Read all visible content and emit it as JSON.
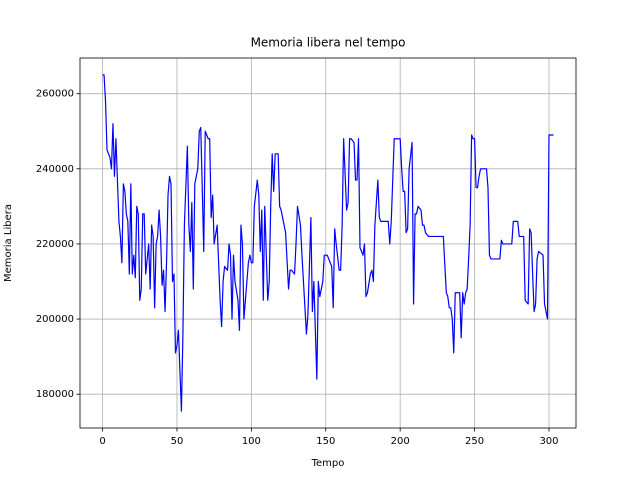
{
  "chart_data": {
    "type": "line",
    "title": "Memoria libera nel tempo",
    "xlabel": "Tempo",
    "ylabel": "Memoria Libera",
    "grid": true,
    "xlim": [
      -15.15,
      318.15
    ],
    "ylim": [
      171000,
      269500
    ],
    "xticks": [
      0,
      50,
      100,
      150,
      200,
      250,
      300
    ],
    "yticks": [
      180000,
      200000,
      220000,
      240000,
      260000
    ],
    "series": [
      {
        "color": "#0000ff",
        "x": [
          0,
          1,
          2,
          3,
          5,
          6,
          7,
          8,
          9,
          11,
          12,
          13,
          14,
          15,
          16,
          17,
          18,
          19,
          20,
          21,
          22,
          23,
          24,
          25,
          26,
          27,
          28,
          29,
          31,
          32,
          33,
          34,
          35,
          36,
          37,
          38,
          39,
          40,
          41,
          42,
          43,
          44,
          45,
          46,
          47,
          48,
          49,
          50,
          51,
          53,
          54,
          55,
          57,
          58,
          59,
          60,
          61,
          62,
          64,
          65,
          66,
          67,
          68,
          69,
          71,
          72,
          73,
          74,
          75,
          77,
          79,
          80,
          81,
          82,
          84,
          85,
          86,
          87,
          88,
          89,
          91,
          92,
          93,
          94,
          95,
          98,
          99,
          100,
          101,
          102,
          104,
          105,
          106,
          107,
          108,
          109,
          111,
          112,
          113,
          114,
          115,
          116,
          118,
          119,
          120,
          123,
          125,
          126,
          127,
          129,
          130,
          131,
          133,
          134,
          135,
          137,
          138,
          140,
          141,
          142,
          144,
          145,
          146,
          148,
          149,
          151,
          153,
          154,
          155,
          156,
          157,
          159,
          160,
          161,
          162,
          164,
          165,
          166,
          167,
          169,
          170,
          171,
          172,
          173,
          175,
          176,
          177,
          178,
          180,
          181,
          182,
          183,
          185,
          186,
          187,
          188,
          192,
          193,
          194,
          196,
          200,
          201,
          202,
          203,
          204,
          205,
          206,
          208,
          209,
          210,
          211,
          212,
          214,
          215,
          216,
          217,
          219,
          229,
          231,
          232,
          233,
          234,
          235,
          236,
          237,
          240,
          241,
          242,
          243,
          244,
          245,
          246,
          247,
          248,
          249,
          250,
          251,
          252,
          253,
          254,
          258,
          259,
          260,
          261,
          267,
          268,
          269,
          275,
          276,
          279,
          280,
          283,
          284,
          286,
          287,
          288,
          289,
          290,
          291,
          292,
          293,
          296,
          297,
          299,
          300,
          303
        ],
        "values": [
          265000,
          265000,
          258000,
          245000,
          243000,
          240000,
          252000,
          238000,
          248000,
          226000,
          222000,
          215000,
          236000,
          234000,
          228000,
          226000,
          212000,
          236000,
          212000,
          217000,
          211000,
          230000,
          228000,
          205000,
          208000,
          228000,
          228000,
          212000,
          220000,
          208000,
          225000,
          222000,
          203000,
          220000,
          222000,
          229000,
          222000,
          209000,
          213000,
          202000,
          215000,
          233000,
          238000,
          236000,
          210000,
          212000,
          191000,
          193000,
          197000,
          175500,
          196000,
          225000,
          246000,
          225000,
          218000,
          231000,
          208000,
          236000,
          240000,
          250000,
          251000,
          235000,
          218000,
          250000,
          248000,
          248000,
          227000,
          233000,
          220000,
          225000,
          205000,
          198000,
          210000,
          214000,
          213000,
          220000,
          217000,
          200000,
          217000,
          210000,
          205000,
          197000,
          225000,
          220000,
          200000,
          215000,
          217000,
          215000,
          215000,
          230000,
          237000,
          233000,
          218000,
          229000,
          205000,
          230000,
          205000,
          210000,
          230000,
          244000,
          234000,
          244000,
          244000,
          230000,
          229000,
          223000,
          208000,
          213000,
          213000,
          212000,
          220000,
          230000,
          225000,
          217000,
          210000,
          196000,
          201000,
          227000,
          202000,
          210000,
          184000,
          210000,
          206000,
          210000,
          217000,
          217000,
          215000,
          214000,
          203000,
          224000,
          220000,
          213000,
          213000,
          225000,
          248000,
          229000,
          231000,
          248000,
          248000,
          247000,
          237000,
          237000,
          248000,
          219000,
          217000,
          220000,
          206000,
          207000,
          212000,
          213000,
          210000,
          225000,
          237000,
          227000,
          226000,
          226000,
          226000,
          220000,
          226000,
          248000,
          248000,
          240000,
          234000,
          234000,
          223000,
          224000,
          240000,
          247000,
          204000,
          228000,
          228000,
          230000,
          229000,
          225000,
          225000,
          223000,
          222000,
          222000,
          207000,
          206000,
          203000,
          203000,
          200000,
          191000,
          207000,
          207000,
          195000,
          207000,
          204000,
          207000,
          208000,
          216000,
          225000,
          249000,
          248000,
          248000,
          235000,
          235000,
          238000,
          240000,
          240000,
          235000,
          217000,
          216000,
          216000,
          221000,
          220000,
          220000,
          226000,
          226000,
          222000,
          222000,
          205000,
          204000,
          224000,
          223000,
          212000,
          202000,
          204000,
          216000,
          218000,
          217000,
          204000,
          200000,
          249000,
          249000
        ]
      }
    ]
  }
}
